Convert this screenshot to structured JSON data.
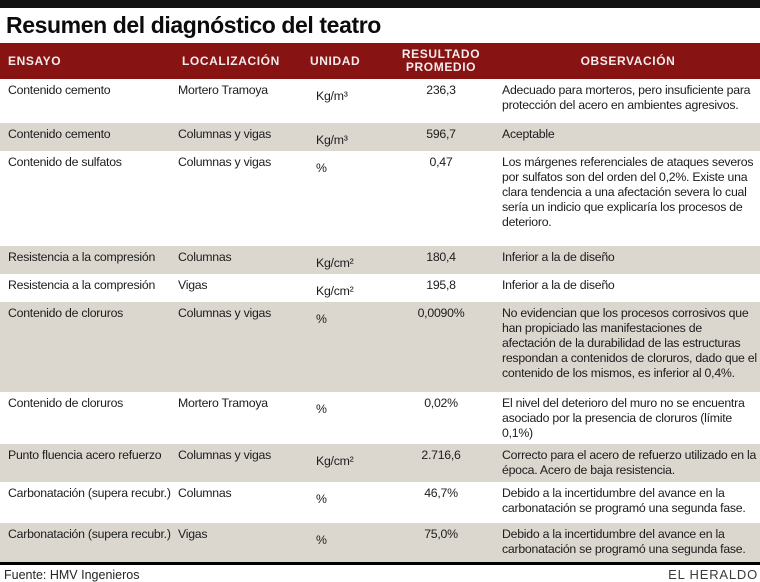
{
  "title": "Resumen del diagnóstico del teatro",
  "colors": {
    "header_bg": "#871313",
    "header_text": "#f3ecec",
    "row_shade": "#dbd7cf",
    "top_bar": "#121212"
  },
  "chart_data": {
    "type": "table",
    "title": "Resumen del diagnóstico del teatro",
    "columns": [
      "ENSAYO",
      "LOCALIZACIÓN",
      "UNIDAD",
      "RESULTADO PROMEDIO",
      "OBSERVACIÓN"
    ],
    "rows": [
      {
        "ensayo": "Contenido cemento",
        "localizacion": "Mortero Tramoya",
        "unidad": "Kg/m³",
        "resultado": "236,3",
        "observacion": "Adecuado para morteros, pero insuficiente para protección del acero en ambientes agresivos."
      },
      {
        "ensayo": "Contenido cemento",
        "localizacion": "Columnas y vigas",
        "unidad": "Kg/m³",
        "resultado": "596,7",
        "observacion": "Aceptable"
      },
      {
        "ensayo": "Contenido de sulfatos",
        "localizacion": "Columnas y vigas",
        "unidad": "%",
        "resultado": "0,47",
        "observacion": "Los márgenes referenciales de ataques severos por sulfatos son del orden del 0,2%. Existe una clara tendencia a una afectación severa lo cual sería un indicio que explicaría los procesos de deterioro."
      },
      {
        "ensayo": "Resistencia a la compresión",
        "localizacion": "Columnas",
        "unidad": "Kg/cm²",
        "resultado": "180,4",
        "observacion": "Inferior a la de diseño"
      },
      {
        "ensayo": "Resistencia a la compresión",
        "localizacion": "Vigas",
        "unidad": "Kg/cm²",
        "resultado": "195,8",
        "observacion": "Inferior a la de diseño"
      },
      {
        "ensayo": "Contenido de cloruros",
        "localizacion": "Columnas y vigas",
        "unidad": "%",
        "resultado": "0,0090%",
        "observacion": "No evidencian que los procesos corrosivos que han propiciado las manifestaciones de afectación de la durabilidad de las estructuras respondan a contenidos de cloruros, dado que el contenido de los mismos, es inferior al 0,4%."
      },
      {
        "ensayo": "Contenido de cloruros",
        "localizacion": "Mortero Tramoya",
        "unidad": "%",
        "resultado": "0,02%",
        "observacion": "El nivel del deterioro del muro no se encuentra asociado por la presencia de cloruros (límite 0,1%)"
      },
      {
        "ensayo": "Punto fluencia acero refuerzo",
        "localizacion": "Columnas y vigas",
        "unidad": "Kg/cm²",
        "resultado": "2.716,6",
        "observacion": "Correcto para el acero de refuerzo utilizado en la época. Acero de baja resistencia."
      },
      {
        "ensayo": "Carbonatación (supera recubr.)",
        "localizacion": "Columnas",
        "unidad": "%",
        "resultado": "46,7%",
        "observacion": "Debido a la incertidumbre del avance en la carbonatación se programó una segunda fase."
      },
      {
        "ensayo": "Carbonatación (supera recubr.)",
        "localizacion": "Vigas",
        "unidad": "%",
        "resultado": "75,0%",
        "observacion": "Debido a la incertidumbre del avance en la carbonatación se programó una segunda fase."
      }
    ]
  },
  "footer": {
    "source": "Fuente: HMV Ingenieros",
    "publisher": "EL HERALDO"
  }
}
